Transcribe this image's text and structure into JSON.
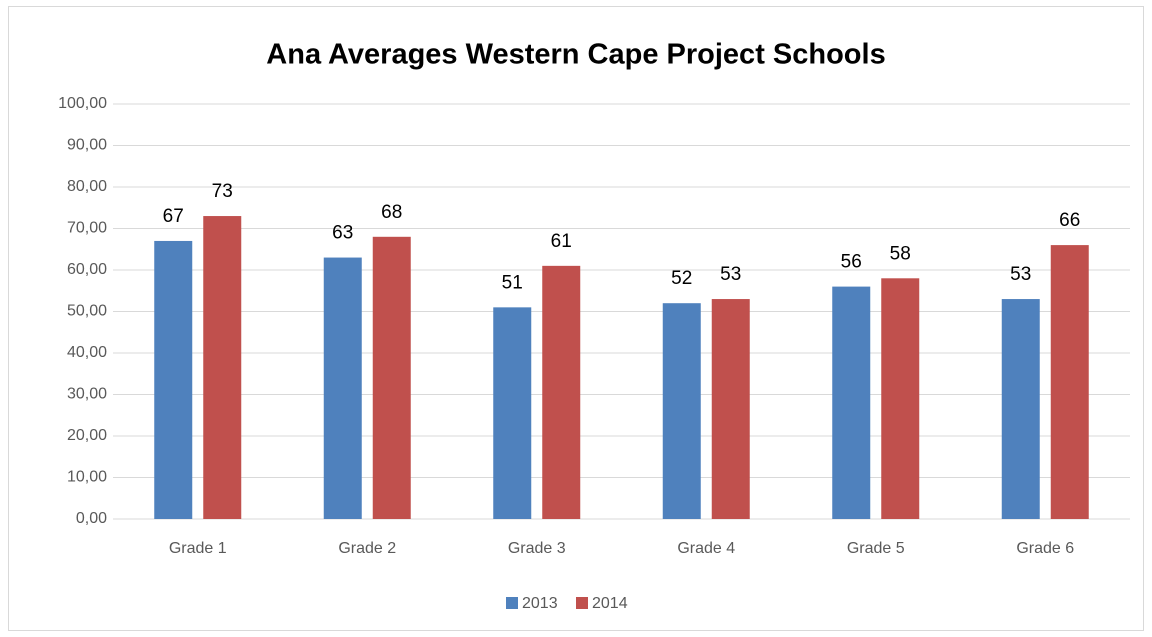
{
  "chart_data": {
    "type": "bar",
    "title": "Ana Averages Western Cape Project Schools",
    "categories": [
      "Grade 1",
      "Grade 2",
      "Grade 3",
      "Grade 4",
      "Grade 5",
      "Grade 6"
    ],
    "series": [
      {
        "name": "2013",
        "color": "#4f81bd",
        "values": [
          67,
          63,
          51,
          52,
          56,
          53
        ]
      },
      {
        "name": "2014",
        "color": "#c0504d",
        "values": [
          73,
          68,
          61,
          53,
          58,
          66
        ]
      }
    ],
    "ylim": [
      0,
      100
    ],
    "yticks": [
      {
        "value": 0,
        "label": "0,00"
      },
      {
        "value": 10,
        "label": "10,00"
      },
      {
        "value": 20,
        "label": "20,00"
      },
      {
        "value": 30,
        "label": "30,00"
      },
      {
        "value": 40,
        "label": "40,00"
      },
      {
        "value": 50,
        "label": "50,00"
      },
      {
        "value": 60,
        "label": "60,00"
      },
      {
        "value": 70,
        "label": "70,00"
      },
      {
        "value": 80,
        "label": "80,00"
      },
      {
        "value": 90,
        "label": "90,00"
      },
      {
        "value": 100,
        "label": "100,00"
      }
    ],
    "grid": true,
    "legend": "bottom"
  }
}
